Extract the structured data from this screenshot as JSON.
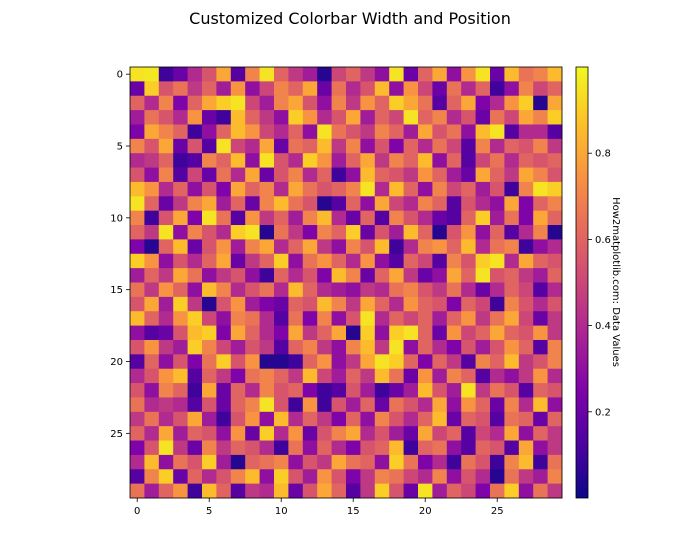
{
  "chart_data": {
    "type": "heatmap",
    "title": "Customized Colorbar Width and Position",
    "colormap": "plasma",
    "rows": 30,
    "cols": 30,
    "xlim": [
      -0.5,
      29.5
    ],
    "ylim": [
      29.5,
      -0.5
    ],
    "x_ticks": [
      0,
      5,
      10,
      15,
      20,
      25
    ],
    "y_ticks": [
      0,
      5,
      10,
      15,
      20,
      25
    ],
    "colorbar": {
      "label": "How2matplotlib.com: Data Values",
      "range": [
        0.0,
        1.0
      ],
      "ticks": [
        "0.2",
        "0.4",
        "0.6",
        "0.8"
      ],
      "tick_values": [
        0.2,
        0.4,
        0.6,
        0.8
      ],
      "placement": "right"
    },
    "values": [
      [
        0.95,
        0.96,
        0.1,
        0.2,
        0.4,
        0.55,
        0.8,
        0.15,
        0.7,
        0.95,
        0.6,
        0.45,
        0.35,
        0.05,
        0.5,
        0.6,
        0.45,
        0.3,
        0.95,
        0.2,
        0.6,
        0.8,
        0.3,
        0.75,
        0.95,
        0.2,
        0.85,
        0.65,
        0.7,
        0.85
      ],
      [
        0.2,
        0.9,
        0.55,
        0.65,
        0.45,
        0.6,
        0.35,
        0.75,
        0.3,
        0.5,
        0.7,
        0.6,
        0.8,
        0.2,
        0.65,
        0.4,
        0.55,
        0.85,
        0.3,
        0.75,
        0.5,
        0.2,
        0.65,
        0.4,
        0.6,
        0.1,
        0.3,
        0.7,
        0.5,
        0.6
      ],
      [
        0.6,
        0.4,
        0.7,
        0.25,
        0.6,
        0.8,
        0.9,
        0.95,
        0.5,
        0.35,
        0.7,
        0.8,
        0.55,
        0.3,
        0.7,
        0.45,
        0.75,
        0.6,
        0.9,
        0.8,
        0.65,
        0.15,
        0.6,
        0.8,
        0.25,
        0.4,
        0.75,
        0.9,
        0.05,
        0.8
      ],
      [
        0.35,
        0.65,
        0.55,
        0.4,
        0.75,
        0.2,
        0.1,
        0.85,
        0.6,
        0.45,
        0.3,
        0.9,
        0.75,
        0.4,
        0.55,
        0.8,
        0.35,
        0.6,
        0.5,
        0.95,
        0.6,
        0.7,
        0.4,
        0.55,
        0.2,
        0.65,
        0.5,
        0.8,
        0.7,
        0.9
      ],
      [
        0.25,
        0.8,
        0.7,
        0.6,
        0.1,
        0.3,
        0.6,
        0.85,
        0.75,
        0.5,
        0.4,
        0.6,
        0.3,
        0.95,
        0.65,
        0.55,
        0.45,
        0.7,
        0.6,
        0.35,
        0.8,
        0.55,
        0.65,
        0.3,
        0.85,
        0.95,
        0.15,
        0.4,
        0.4,
        0.15
      ],
      [
        0.7,
        0.55,
        0.8,
        0.2,
        0.55,
        0.15,
        0.95,
        0.5,
        0.4,
        0.8,
        0.2,
        0.65,
        0.6,
        0.85,
        0.45,
        0.7,
        0.3,
        0.55,
        0.25,
        0.6,
        0.4,
        0.65,
        0.5,
        0.15,
        0.7,
        0.4,
        0.6,
        0.55,
        0.7,
        0.45
      ],
      [
        0.4,
        0.45,
        0.6,
        0.1,
        0.15,
        0.7,
        0.6,
        0.85,
        0.3,
        0.95,
        0.55,
        0.4,
        0.9,
        0.75,
        0.35,
        0.6,
        0.8,
        0.45,
        0.7,
        0.6,
        0.85,
        0.3,
        0.6,
        0.15,
        0.5,
        0.65,
        0.4,
        0.6,
        0.55,
        0.6
      ],
      [
        0.55,
        0.3,
        0.7,
        0.15,
        0.5,
        0.2,
        0.65,
        0.4,
        0.8,
        0.2,
        0.55,
        0.7,
        0.4,
        0.6,
        0.1,
        0.3,
        0.85,
        0.6,
        0.55,
        0.45,
        0.75,
        0.6,
        0.35,
        0.2,
        0.8,
        0.6,
        0.45,
        0.8,
        0.7,
        0.55
      ],
      [
        0.85,
        0.75,
        0.4,
        0.6,
        0.3,
        0.55,
        0.25,
        0.8,
        0.6,
        0.7,
        0.4,
        0.8,
        0.65,
        0.55,
        0.6,
        0.7,
        0.95,
        0.4,
        0.85,
        0.6,
        0.3,
        0.7,
        0.5,
        0.6,
        0.35,
        0.55,
        0.1,
        0.7,
        0.95,
        0.9
      ],
      [
        0.95,
        0.6,
        0.2,
        0.45,
        0.7,
        0.8,
        0.35,
        0.6,
        0.2,
        0.7,
        0.85,
        0.65,
        0.55,
        0.05,
        0.15,
        0.6,
        0.3,
        0.8,
        0.5,
        0.4,
        0.7,
        0.6,
        0.15,
        0.55,
        0.4,
        0.3,
        0.8,
        0.25,
        0.6,
        0.7
      ],
      [
        0.7,
        0.1,
        0.55,
        0.8,
        0.25,
        0.95,
        0.65,
        0.15,
        0.75,
        0.45,
        0.6,
        0.35,
        0.7,
        0.85,
        0.4,
        0.2,
        0.6,
        0.15,
        0.7,
        0.55,
        0.4,
        0.2,
        0.15,
        0.6,
        0.9,
        0.35,
        0.65,
        0.25,
        0.8,
        0.6
      ],
      [
        0.6,
        0.45,
        0.95,
        0.3,
        0.7,
        0.55,
        0.4,
        0.9,
        0.95,
        0.05,
        0.65,
        0.45,
        0.25,
        0.7,
        0.6,
        0.9,
        0.2,
        0.55,
        0.35,
        0.85,
        0.6,
        0.05,
        0.55,
        0.75,
        0.3,
        0.6,
        0.15,
        0.4,
        0.7,
        0.05
      ],
      [
        0.25,
        0.05,
        0.6,
        0.85,
        0.2,
        0.55,
        0.75,
        0.35,
        0.7,
        0.8,
        0.4,
        0.6,
        0.8,
        0.45,
        0.3,
        0.7,
        0.55,
        0.85,
        0.1,
        0.4,
        0.7,
        0.75,
        0.6,
        0.85,
        0.4,
        0.65,
        0.7,
        0.1,
        0.3,
        0.4
      ],
      [
        0.9,
        0.75,
        0.3,
        0.55,
        0.4,
        0.6,
        0.8,
        0.2,
        0.45,
        0.6,
        0.9,
        0.3,
        0.65,
        0.75,
        0.6,
        0.4,
        0.75,
        0.3,
        0.15,
        0.6,
        0.5,
        0.15,
        0.7,
        0.55,
        0.9,
        0.95,
        0.4,
        0.8,
        0.6,
        0.55
      ],
      [
        0.35,
        0.6,
        0.45,
        0.8,
        0.65,
        0.3,
        0.45,
        0.55,
        0.3,
        0.1,
        0.6,
        0.4,
        0.55,
        0.25,
        0.85,
        0.7,
        0.2,
        0.6,
        0.8,
        0.45,
        0.2,
        0.3,
        0.8,
        0.6,
        0.95,
        0.55,
        0.6,
        0.45,
        0.35,
        0.6
      ],
      [
        0.65,
        0.45,
        0.75,
        0.6,
        0.3,
        0.85,
        0.7,
        0.4,
        0.55,
        0.65,
        0.4,
        0.85,
        0.6,
        0.4,
        0.35,
        0.3,
        0.45,
        0.4,
        0.65,
        0.7,
        0.55,
        0.45,
        0.65,
        0.4,
        0.2,
        0.4,
        0.6,
        0.5,
        0.15,
        0.4
      ],
      [
        0.55,
        0.8,
        0.35,
        0.9,
        0.45,
        0.05,
        0.55,
        0.75,
        0.35,
        0.25,
        0.2,
        0.6,
        0.55,
        0.85,
        0.7,
        0.45,
        0.8,
        0.6,
        0.4,
        0.75,
        0.6,
        0.55,
        0.25,
        0.6,
        0.5,
        0.1,
        0.7,
        0.55,
        0.4,
        0.55
      ],
      [
        0.85,
        0.6,
        0.4,
        0.75,
        0.9,
        0.5,
        0.3,
        0.7,
        0.65,
        0.4,
        0.15,
        0.65,
        0.25,
        0.7,
        0.3,
        0.55,
        0.95,
        0.4,
        0.6,
        0.5,
        0.6,
        0.35,
        0.6,
        0.75,
        0.45,
        0.65,
        0.8,
        0.5,
        0.2,
        0.45
      ],
      [
        0.3,
        0.15,
        0.2,
        0.55,
        0.85,
        0.9,
        0.25,
        0.8,
        0.6,
        0.4,
        0.25,
        0.8,
        0.45,
        0.6,
        0.8,
        0.05,
        0.9,
        0.3,
        0.9,
        0.95,
        0.6,
        0.2,
        0.75,
        0.5,
        0.6,
        0.8,
        0.6,
        0.55,
        0.75,
        0.45
      ],
      [
        0.55,
        0.75,
        0.45,
        0.35,
        0.9,
        0.7,
        0.5,
        0.35,
        0.55,
        0.45,
        0.15,
        0.6,
        0.7,
        0.45,
        0.3,
        0.7,
        0.85,
        0.45,
        0.95,
        0.3,
        0.6,
        0.4,
        0.25,
        0.55,
        0.35,
        0.55,
        0.75,
        0.6,
        0.15,
        0.7
      ],
      [
        0.15,
        0.6,
        0.3,
        0.55,
        0.25,
        0.65,
        0.9,
        0.55,
        0.75,
        0.05,
        0.05,
        0.1,
        0.6,
        0.75,
        0.3,
        0.45,
        0.8,
        0.95,
        0.9,
        0.6,
        0.25,
        0.6,
        0.45,
        0.15,
        0.7,
        0.6,
        0.85,
        0.45,
        0.55,
        0.7
      ],
      [
        0.4,
        0.55,
        0.75,
        0.85,
        0.15,
        0.6,
        0.45,
        0.25,
        0.65,
        0.7,
        0.6,
        0.45,
        0.85,
        0.5,
        0.35,
        0.6,
        0.45,
        0.85,
        0.65,
        0.2,
        0.75,
        0.35,
        0.7,
        0.6,
        0.15,
        0.4,
        0.3,
        0.45,
        0.75,
        0.4
      ],
      [
        0.55,
        0.3,
        0.7,
        0.6,
        0.1,
        0.8,
        0.2,
        0.6,
        0.4,
        0.7,
        0.55,
        0.6,
        0.25,
        0.1,
        0.15,
        0.55,
        0.35,
        0.1,
        0.2,
        0.35,
        0.85,
        0.55,
        0.35,
        0.95,
        0.45,
        0.65,
        0.55,
        0.15,
        0.6,
        0.55
      ],
      [
        0.65,
        0.4,
        0.45,
        0.4,
        0.15,
        0.55,
        0.2,
        0.6,
        0.7,
        0.95,
        0.55,
        0.1,
        0.75,
        0.1,
        0.55,
        0.35,
        0.6,
        0.2,
        0.65,
        0.55,
        0.4,
        0.8,
        0.3,
        0.75,
        0.6,
        0.2,
        0.7,
        0.4,
        0.85,
        0.3
      ],
      [
        0.45,
        0.65,
        0.4,
        0.55,
        0.8,
        0.35,
        0.1,
        0.55,
        0.75,
        0.3,
        0.85,
        0.4,
        0.6,
        0.45,
        0.25,
        0.6,
        0.3,
        0.7,
        0.55,
        0.4,
        0.6,
        0.85,
        0.2,
        0.6,
        0.55,
        0.15,
        0.65,
        0.6,
        0.2,
        0.6
      ],
      [
        0.6,
        0.4,
        0.8,
        0.35,
        0.6,
        0.55,
        0.3,
        0.75,
        0.2,
        0.9,
        0.4,
        0.75,
        0.2,
        0.55,
        0.7,
        0.8,
        0.4,
        0.55,
        0.35,
        0.2,
        0.8,
        0.5,
        0.6,
        0.15,
        0.5,
        0.4,
        0.8,
        0.3,
        0.6,
        0.45
      ],
      [
        0.25,
        0.55,
        0.95,
        0.45,
        0.2,
        0.7,
        0.45,
        0.6,
        0.55,
        0.4,
        0.1,
        0.65,
        0.3,
        0.6,
        0.4,
        0.25,
        0.55,
        0.6,
        0.85,
        0.1,
        0.6,
        0.65,
        0.3,
        0.15,
        0.6,
        0.55,
        0.15,
        0.8,
        0.3,
        0.45
      ],
      [
        0.4,
        0.85,
        0.3,
        0.65,
        0.55,
        0.9,
        0.35,
        0.05,
        0.6,
        0.65,
        0.7,
        0.3,
        0.55,
        0.45,
        0.8,
        0.65,
        0.6,
        0.3,
        0.9,
        0.65,
        0.25,
        0.4,
        0.1,
        0.65,
        0.55,
        0.1,
        0.7,
        0.85,
        0.1,
        0.65
      ],
      [
        0.15,
        0.7,
        0.9,
        0.2,
        0.6,
        0.4,
        0.55,
        0.7,
        0.85,
        0.3,
        0.9,
        0.55,
        0.35,
        0.75,
        0.55,
        0.25,
        0.45,
        0.7,
        0.65,
        0.5,
        0.4,
        0.7,
        0.3,
        0.55,
        0.4,
        0.05,
        0.65,
        0.45,
        0.35,
        0.7
      ],
      [
        0.65,
        0.35,
        0.6,
        0.75,
        0.1,
        0.85,
        0.6,
        0.15,
        0.45,
        0.4,
        0.85,
        0.2,
        0.55,
        0.8,
        0.6,
        0.15,
        0.45,
        0.9,
        0.55,
        0.2,
        0.95,
        0.35,
        0.6,
        0.5,
        0.25,
        0.65,
        0.9,
        0.3,
        0.65,
        0.45
      ]
    ]
  }
}
